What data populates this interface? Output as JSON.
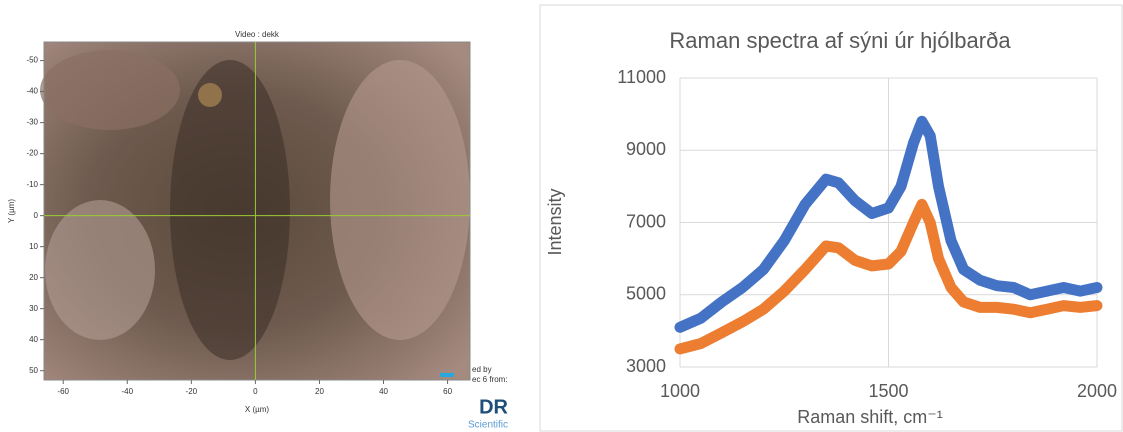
{
  "chart_data": [
    {
      "type": "image",
      "title": "Video : dekk",
      "x_label": "X (µm)",
      "y_label": "Y (µm)",
      "xlim": [
        -66,
        67
      ],
      "ylim": [
        -56,
        53
      ],
      "y_inverted": true,
      "xticks": [
        -60,
        -40,
        -20,
        0,
        20,
        40,
        60
      ],
      "yticks": [
        -50,
        -40,
        -30,
        -20,
        -10,
        0,
        10,
        20,
        30,
        40,
        50
      ],
      "crosshair_color": "#9acd32",
      "annotations": [
        "ed by",
        "ec 6 from:",
        "DR",
        "Scientific"
      ]
    },
    {
      "type": "line",
      "title": "Raman spectra af sýni úr hjólbarða",
      "x_label": "Raman shift, cm⁻¹",
      "y_label": "Intensity",
      "xlim": [
        1000,
        2000
      ],
      "ylim": [
        3000,
        11000
      ],
      "xticks": [
        1000,
        1500,
        2000
      ],
      "yticks": [
        3000,
        5000,
        7000,
        9000,
        11000
      ],
      "grid": true,
      "x": [
        1000,
        1050,
        1100,
        1150,
        1200,
        1250,
        1300,
        1350,
        1380,
        1420,
        1460,
        1500,
        1530,
        1560,
        1580,
        1600,
        1620,
        1650,
        1680,
        1720,
        1760,
        1800,
        1840,
        1880,
        1920,
        1960,
        2000
      ],
      "series": [
        {
          "color": "#4472c4",
          "values": [
            4100,
            4350,
            4800,
            5200,
            5700,
            6500,
            7500,
            8200,
            8100,
            7600,
            7250,
            7400,
            8000,
            9200,
            9800,
            9400,
            8000,
            6500,
            5700,
            5400,
            5250,
            5200,
            5000,
            5100,
            5200,
            5100,
            5200
          ]
        },
        {
          "color": "#ed7d31",
          "values": [
            3500,
            3650,
            3950,
            4250,
            4600,
            5100,
            5700,
            6350,
            6300,
            5950,
            5800,
            5850,
            6200,
            7000,
            7500,
            7000,
            6000,
            5200,
            4800,
            4650,
            4650,
            4600,
            4500,
            4600,
            4700,
            4650,
            4700
          ]
        }
      ]
    }
  ]
}
